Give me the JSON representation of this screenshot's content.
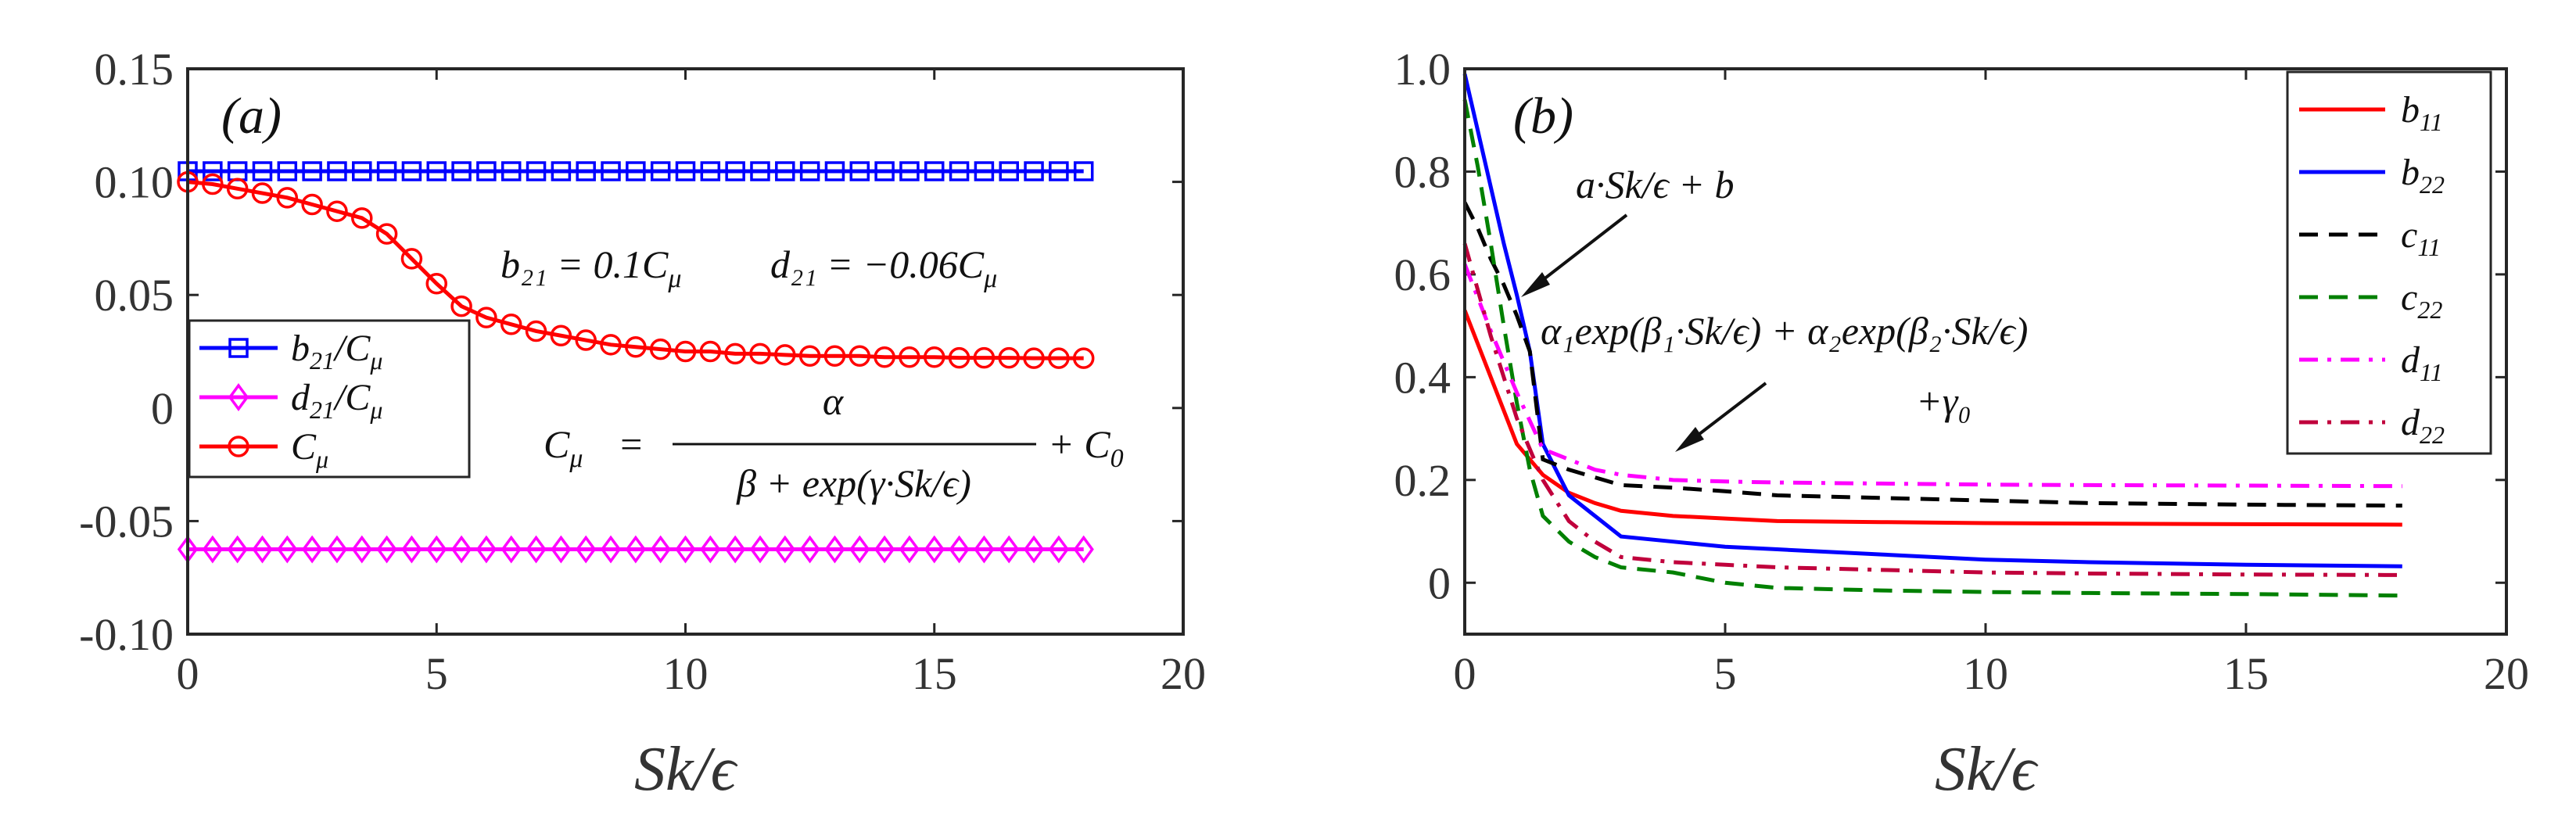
{
  "chart_data": [
    {
      "type": "line",
      "panel_label": "(a)",
      "xlabel": "Sk/ϵ",
      "ylabel": "",
      "xlim": [
        0,
        20
      ],
      "ylim": [
        -0.1,
        0.15
      ],
      "xticks": [
        0,
        5,
        10,
        15,
        20
      ],
      "xtick_labels": [
        "0",
        "5",
        "10",
        "15",
        "20"
      ],
      "yticks": [
        -0.1,
        -0.05,
        0,
        0.05,
        0.1,
        0.15
      ],
      "ytick_labels": [
        "-0.10",
        "-0.05",
        "0",
        "0.05",
        "0.10",
        "0.15"
      ],
      "legend_position": "lower-left",
      "annotations": [
        "b₂₁ = 0.1C_μ   d₂₁ = −0.06C_μ",
        "C_μ = α / (β + exp(γ·Sk/ϵ)) + C₀"
      ],
      "annotation_text": {
        "eq1": "b₂₁ = 0.1C",
        "eq1_sub": "μ",
        "eq2": "d₂₁ = −0.06C",
        "eq2_sub": "μ",
        "cmu_lhs": "C",
        "cmu_lhs_sub": "μ",
        "cmu_eq": "=",
        "numerator": "α",
        "denominator": "β + exp(γ·Sk/ϵ)",
        "plus_c0": "+ C",
        "c0_sub": "0"
      },
      "series": [
        {
          "name": "b21/C_μ",
          "legend_main": "b",
          "legend_sub": "21",
          "legend_tail": "/C",
          "legend_sub2": "μ",
          "color": "#0000ff",
          "marker": "square",
          "x": [
            0,
            0.5,
            1,
            1.5,
            2,
            2.5,
            3,
            3.5,
            4,
            4.5,
            5,
            5.5,
            6,
            6.5,
            7,
            7.5,
            8,
            8.5,
            9,
            9.5,
            10,
            10.5,
            11,
            11.5,
            12,
            12.5,
            13,
            13.5,
            14,
            14.5,
            15,
            15.5,
            16,
            16.5,
            17,
            17.5,
            18
          ],
          "y": [
            0.1047,
            0.1047,
            0.1047,
            0.1047,
            0.1047,
            0.1047,
            0.1047,
            0.1047,
            0.1047,
            0.1047,
            0.1047,
            0.1047,
            0.1047,
            0.1047,
            0.1047,
            0.1047,
            0.1047,
            0.1047,
            0.1047,
            0.1047,
            0.1047,
            0.1047,
            0.1047,
            0.1047,
            0.1047,
            0.1047,
            0.1047,
            0.1047,
            0.1047,
            0.1047,
            0.1047,
            0.1047,
            0.1047,
            0.1047,
            0.1047,
            0.1047,
            0.1047
          ]
        },
        {
          "name": "d21/C_μ",
          "legend_main": "d",
          "legend_sub": "21",
          "legend_tail": "/C",
          "legend_sub2": "μ",
          "color": "#ff00ff",
          "marker": "diamond",
          "x": [
            0,
            0.5,
            1,
            1.5,
            2,
            2.5,
            3,
            3.5,
            4,
            4.5,
            5,
            5.5,
            6,
            6.5,
            7,
            7.5,
            8,
            8.5,
            9,
            9.5,
            10,
            10.5,
            11,
            11.5,
            12,
            12.5,
            13,
            13.5,
            14,
            14.5,
            15,
            15.5,
            16,
            16.5,
            17,
            17.5,
            18
          ],
          "y": [
            -0.0625,
            -0.0625,
            -0.0625,
            -0.0625,
            -0.0625,
            -0.0625,
            -0.0625,
            -0.0625,
            -0.0625,
            -0.0625,
            -0.0625,
            -0.0625,
            -0.0625,
            -0.0625,
            -0.0625,
            -0.0625,
            -0.0625,
            -0.0625,
            -0.0625,
            -0.0625,
            -0.0625,
            -0.0625,
            -0.0625,
            -0.0625,
            -0.0625,
            -0.0625,
            -0.0625,
            -0.0625,
            -0.0625,
            -0.0625,
            -0.0625,
            -0.0625,
            -0.0625,
            -0.0625,
            -0.0625,
            -0.0625,
            -0.0625
          ]
        },
        {
          "name": "C_μ",
          "legend_main": "C",
          "legend_sub": "μ",
          "legend_tail": "",
          "legend_sub2": "",
          "color": "#ff0000",
          "marker": "circle",
          "x": [
            0,
            0.5,
            1,
            1.5,
            2,
            2.5,
            3,
            3.5,
            4,
            4.5,
            5,
            5.5,
            6,
            6.5,
            7,
            7.5,
            8,
            8.5,
            9,
            9.5,
            10,
            10.5,
            11,
            11.5,
            12,
            12.5,
            13,
            13.5,
            14,
            14.5,
            15,
            15.5,
            16,
            16.5,
            17,
            17.5,
            18
          ],
          "y": [
            0.1,
            0.099,
            0.097,
            0.095,
            0.093,
            0.09,
            0.087,
            0.084,
            0.077,
            0.066,
            0.055,
            0.045,
            0.04,
            0.037,
            0.034,
            0.032,
            0.03,
            0.028,
            0.027,
            0.026,
            0.025,
            0.025,
            0.024,
            0.024,
            0.0235,
            0.023,
            0.023,
            0.023,
            0.0225,
            0.0225,
            0.0225,
            0.0222,
            0.0222,
            0.0222,
            0.022,
            0.022,
            0.022
          ]
        }
      ]
    },
    {
      "type": "line",
      "panel_label": "(b)",
      "xlabel": "Sk/ϵ",
      "ylabel": "",
      "xlim": [
        0,
        20
      ],
      "ylim": [
        -0.1,
        1.0
      ],
      "xticks": [
        0,
        5,
        10,
        15,
        20
      ],
      "xtick_labels": [
        "0",
        "5",
        "10",
        "15",
        "20"
      ],
      "yticks": [
        0,
        0.2,
        0.4,
        0.6,
        0.8,
        1.0
      ],
      "ytick_labels": [
        "0",
        "0.2",
        "0.4",
        "0.6",
        "0.8",
        "1.0"
      ],
      "legend_position": "top-right",
      "annotations": [
        "a·Sk/ϵ + b",
        "α₁exp(β₁·Sk/ϵ) + α₂exp(β₂·Sk/ϵ)",
        "+γ₀"
      ],
      "series": [
        {
          "name": "b11",
          "legend_main": "b",
          "legend_sub": "11",
          "color": "#ff0000",
          "dash": "solid",
          "x": [
            0,
            0.5,
            1,
            1.5,
            2,
            2.5,
            3,
            4,
            5,
            6,
            8,
            10,
            12,
            15,
            18
          ],
          "y": [
            0.53,
            0.4,
            0.27,
            0.21,
            0.175,
            0.155,
            0.14,
            0.13,
            0.125,
            0.12,
            0.118,
            0.116,
            0.115,
            0.114,
            0.113
          ]
        },
        {
          "name": "b22",
          "legend_main": "b",
          "legend_sub": "22",
          "color": "#0000ff",
          "dash": "solid",
          "x": [
            0,
            0.25,
            0.5,
            0.75,
            1,
            1.25,
            1.5,
            2,
            2.5,
            3,
            4,
            5,
            6,
            8,
            10,
            12,
            15,
            18
          ],
          "y": [
            0.99,
            0.88,
            0.77,
            0.66,
            0.56,
            0.45,
            0.27,
            0.17,
            0.13,
            0.09,
            0.08,
            0.07,
            0.065,
            0.055,
            0.045,
            0.04,
            0.035,
            0.032
          ]
        },
        {
          "name": "c11",
          "legend_main": "c",
          "legend_sub": "11",
          "color": "#000000",
          "dash": "dash",
          "x": [
            0,
            0.25,
            0.5,
            0.75,
            1,
            1.25,
            1.5,
            2,
            2.5,
            3,
            4,
            5,
            6,
            8,
            10,
            12,
            15,
            18
          ],
          "y": [
            0.74,
            0.69,
            0.63,
            0.58,
            0.52,
            0.45,
            0.24,
            0.22,
            0.205,
            0.19,
            0.185,
            0.178,
            0.17,
            0.165,
            0.16,
            0.155,
            0.152,
            0.15
          ]
        },
        {
          "name": "c22",
          "legend_main": "c",
          "legend_sub": "22",
          "color": "#008000",
          "dash": "dash",
          "x": [
            0,
            0.25,
            0.5,
            0.75,
            1,
            1.25,
            1.5,
            2,
            2.5,
            3,
            4,
            5,
            6,
            8,
            10,
            12,
            15,
            18
          ],
          "y": [
            0.94,
            0.81,
            0.66,
            0.5,
            0.35,
            0.22,
            0.13,
            0.08,
            0.05,
            0.03,
            0.02,
            0.0,
            -0.01,
            -0.015,
            -0.018,
            -0.02,
            -0.022,
            -0.025
          ]
        },
        {
          "name": "d11",
          "legend_main": "d",
          "legend_sub": "11",
          "color": "#ff00ff",
          "dash": "dashdot",
          "x": [
            0,
            0.5,
            1,
            1.5,
            2,
            2.5,
            3,
            4,
            5,
            6,
            8,
            10,
            12,
            15,
            18
          ],
          "y": [
            0.62,
            0.49,
            0.37,
            0.26,
            0.24,
            0.22,
            0.21,
            0.2,
            0.197,
            0.195,
            0.193,
            0.191,
            0.19,
            0.189,
            0.188
          ]
        },
        {
          "name": "d22",
          "legend_main": "d",
          "legend_sub": "22",
          "color": "#c0003c",
          "dash": "dashdot",
          "x": [
            0,
            0.5,
            1,
            1.5,
            2,
            2.5,
            3,
            4,
            5,
            6,
            8,
            10,
            12,
            15,
            18
          ],
          "y": [
            0.66,
            0.48,
            0.32,
            0.2,
            0.12,
            0.08,
            0.05,
            0.04,
            0.035,
            0.03,
            0.025,
            0.02,
            0.018,
            0.016,
            0.015
          ]
        }
      ]
    }
  ]
}
